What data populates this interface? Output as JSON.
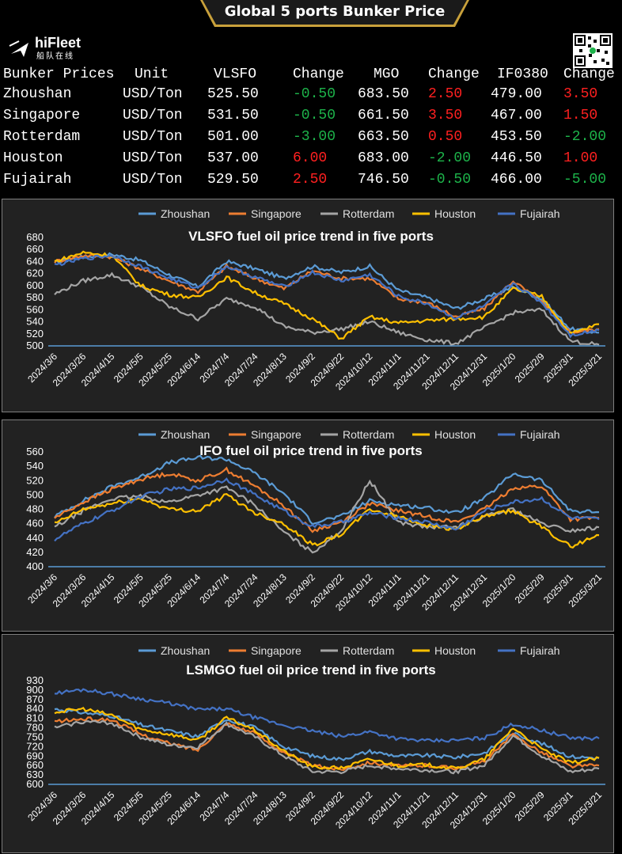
{
  "banner": {
    "title": "Global 5 ports  Bunker Price"
  },
  "logo": {
    "name": "hiFleet",
    "sub": "船队在线"
  },
  "colors": {
    "Zhoushan": "#5b9bd5",
    "Singapore": "#ed7d31",
    "Rotterdam": "#a5a5a5",
    "Houston": "#ffc000",
    "Fujairah": "#4472c4",
    "up": "#ff2020",
    "down": "#1db34a"
  },
  "table": {
    "headers": [
      "Bunker Prices",
      "Unit",
      "VLSFO",
      "Change",
      "MGO",
      "Change",
      "IF0380",
      "Change"
    ],
    "rows": [
      {
        "port": "Zhoushan",
        "unit": "USD/Ton",
        "vlsfo": "525.50",
        "vlsfo_change": "-0.50",
        "mgo": "683.50",
        "mgo_change": "2.50",
        "ifo": "479.00",
        "ifo_change": "3.50"
      },
      {
        "port": "Singapore",
        "unit": "USD/Ton",
        "vlsfo": "531.50",
        "vlsfo_change": "-0.50",
        "mgo": "661.50",
        "mgo_change": "3.50",
        "ifo": "467.00",
        "ifo_change": "1.50"
      },
      {
        "port": "Rotterdam",
        "unit": "USD/Ton",
        "vlsfo": "501.00",
        "vlsfo_change": "-3.00",
        "mgo": "663.50",
        "mgo_change": "0.50",
        "ifo": "453.50",
        "ifo_change": "-2.00"
      },
      {
        "port": "Houston",
        "unit": "USD/Ton",
        "vlsfo": "537.00",
        "vlsfo_change": "6.00",
        "mgo": "683.00",
        "mgo_change": "-2.00",
        "ifo": "446.50",
        "ifo_change": "1.00"
      },
      {
        "port": "Fujairah",
        "unit": "USD/Ton",
        "vlsfo": "529.50",
        "vlsfo_change": "2.50",
        "mgo": "746.50",
        "mgo_change": "-0.50",
        "ifo": "466.00",
        "ifo_change": "-5.00"
      }
    ]
  },
  "chart_data": [
    {
      "type": "line",
      "title": "VLSFO fuel oil price trend in five ports",
      "x": [
        "2024/3/6",
        "2024/3/26",
        "2024/4/15",
        "2024/5/5",
        "2024/5/25",
        "2024/6/14",
        "2024/7/4",
        "2024/7/24",
        "2024/8/13",
        "2024/9/2",
        "2024/9/22",
        "2024/10/12",
        "2024/11/1",
        "2024/11/21",
        "2024/12/11",
        "2024/12/31",
        "2025/1/20",
        "2025/2/9",
        "2025/3/1",
        "2025/3/21"
      ],
      "yticks": [
        500,
        520,
        540,
        560,
        580,
        600,
        620,
        640,
        660,
        680
      ],
      "ylim": [
        500,
        680
      ],
      "legend_position": "top",
      "series": [
        {
          "name": "Zhoushan",
          "values": [
            638,
            648,
            652,
            642,
            618,
            598,
            640,
            628,
            612,
            632,
            622,
            632,
            592,
            580,
            562,
            578,
            598,
            578,
            528,
            522
          ]
        },
        {
          "name": "Singapore",
          "values": [
            640,
            650,
            648,
            628,
            608,
            590,
            632,
            612,
            595,
            625,
            612,
            612,
            578,
            572,
            548,
            562,
            608,
            572,
            522,
            528
          ]
        },
        {
          "name": "Rotterdam",
          "values": [
            586,
            608,
            618,
            598,
            565,
            545,
            578,
            565,
            532,
            522,
            528,
            540,
            522,
            510,
            504,
            530,
            555,
            560,
            508,
            502
          ]
        },
        {
          "name": "Houston",
          "values": [
            640,
            655,
            650,
            600,
            585,
            580,
            614,
            588,
            570,
            545,
            512,
            548,
            538,
            542,
            545,
            548,
            595,
            582,
            520,
            536
          ]
        },
        {
          "name": "Fujairah",
          "values": [
            634,
            645,
            650,
            632,
            612,
            596,
            632,
            614,
            598,
            622,
            608,
            618,
            582,
            570,
            546,
            566,
            604,
            572,
            518,
            526
          ]
        }
      ]
    },
    {
      "type": "line",
      "title": "IFO fuel oil price trend in five ports",
      "x": [
        "2024/3/6",
        "2024/3/26",
        "2024/4/15",
        "2024/5/5",
        "2024/5/25",
        "2024/6/14",
        "2024/7/4",
        "2024/7/24",
        "2024/8/13",
        "2024/9/2",
        "2024/9/22",
        "2024/10/12",
        "2024/11/1",
        "2024/11/21",
        "2024/12/11",
        "2024/12/31",
        "2025/1/20",
        "2025/2/9",
        "2025/3/1",
        "2025/3/21"
      ],
      "yticks": [
        400,
        420,
        440,
        460,
        480,
        500,
        520,
        540,
        560
      ],
      "ylim": [
        400,
        560
      ],
      "legend_position": "top",
      "series": [
        {
          "name": "Zhoushan",
          "values": [
            470,
            492,
            512,
            525,
            545,
            552,
            550,
            530,
            502,
            462,
            470,
            492,
            486,
            482,
            475,
            495,
            530,
            520,
            478,
            476
          ]
        },
        {
          "name": "Singapore",
          "values": [
            468,
            490,
            508,
            522,
            530,
            520,
            535,
            512,
            485,
            450,
            462,
            488,
            478,
            470,
            462,
            480,
            510,
            512,
            466,
            468
          ]
        },
        {
          "name": "Rotterdam",
          "values": [
            455,
            478,
            495,
            498,
            490,
            500,
            510,
            486,
            448,
            420,
            450,
            520,
            462,
            455,
            455,
            470,
            480,
            460,
            450,
            455
          ]
        },
        {
          "name": "Houston",
          "values": [
            460,
            480,
            488,
            495,
            480,
            478,
            500,
            475,
            460,
            430,
            445,
            480,
            470,
            458,
            452,
            470,
            478,
            455,
            428,
            444
          ]
        },
        {
          "name": "Fujairah",
          "values": [
            438,
            460,
            478,
            498,
            508,
            510,
            522,
            500,
            478,
            456,
            462,
            475,
            468,
            462,
            452,
            478,
            490,
            495,
            468,
            466
          ]
        }
      ]
    },
    {
      "type": "line",
      "title": "LSMGO fuel oil price trend in five ports",
      "x": [
        "2024/3/6",
        "2024/3/26",
        "2024/4/15",
        "2024/5/5",
        "2024/5/25",
        "2024/6/14",
        "2024/7/4",
        "2024/7/24",
        "2024/8/13",
        "2024/9/2",
        "2024/9/22",
        "2024/10/12",
        "2024/11/1",
        "2024/11/21",
        "2024/12/11",
        "2024/12/31",
        "2025/1/20",
        "2025/2/9",
        "2025/3/1",
        "2025/3/21"
      ],
      "yticks": [
        600,
        630,
        660,
        690,
        720,
        750,
        780,
        810,
        840,
        870,
        900,
        930
      ],
      "ylim": [
        600,
        930
      ],
      "legend_position": "top",
      "series": [
        {
          "name": "Zhoushan",
          "values": [
            840,
            828,
            818,
            790,
            770,
            752,
            808,
            780,
            720,
            690,
            680,
            705,
            690,
            692,
            686,
            700,
            762,
            730,
            688,
            684
          ]
        },
        {
          "name": "Singapore",
          "values": [
            800,
            808,
            805,
            760,
            730,
            710,
            795,
            762,
            700,
            660,
            648,
            670,
            658,
            660,
            652,
            672,
            758,
            702,
            658,
            660
          ]
        },
        {
          "name": "Rotterdam",
          "values": [
            780,
            800,
            795,
            750,
            725,
            718,
            792,
            750,
            690,
            640,
            640,
            660,
            650,
            645,
            640,
            660,
            755,
            690,
            640,
            650
          ]
        },
        {
          "name": "Houston",
          "values": [
            830,
            840,
            820,
            775,
            760,
            740,
            812,
            772,
            705,
            655,
            652,
            680,
            660,
            662,
            650,
            680,
            780,
            712,
            668,
            684
          ]
        },
        {
          "name": "Fujairah",
          "values": [
            890,
            902,
            888,
            872,
            858,
            838,
            840,
            812,
            788,
            770,
            752,
            768,
            745,
            738,
            740,
            748,
            792,
            772,
            748,
            746
          ]
        }
      ]
    }
  ]
}
